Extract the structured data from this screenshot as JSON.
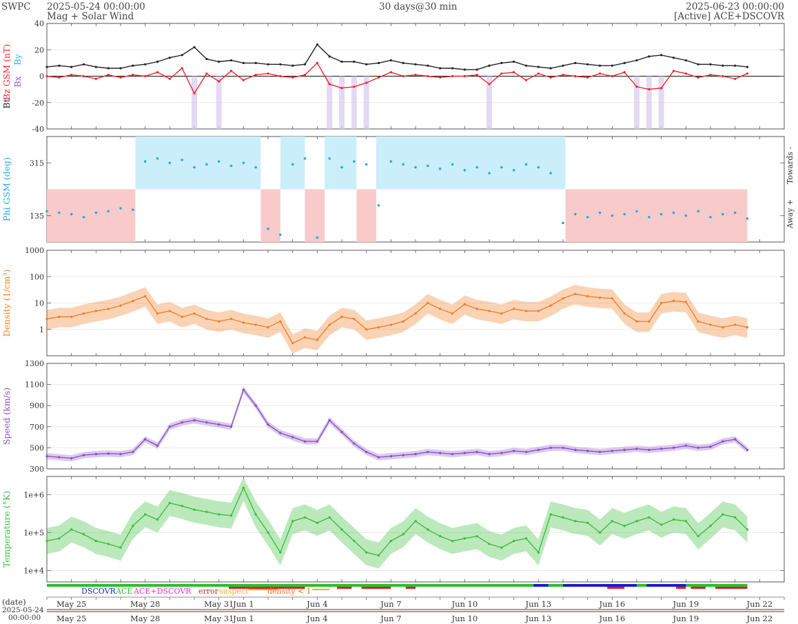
{
  "header": {
    "brand": "SWPC",
    "start": "2025-05-24 00:00:00",
    "subtitle": "Mag + Solar Wind",
    "resolution": "30 days@30 min",
    "end": "2025-06-23 00:00:00",
    "source": "[Active] ACE+DSCOVR"
  },
  "footer": {
    "date_label": "(date)",
    "date_value": "2025-05-24",
    "time_value": "00:00:00"
  },
  "colors": {
    "bt": "#222222",
    "bz": "#e8262b",
    "bx": "#8c55d0",
    "by": "#25b4e6",
    "phi": "#22a9e6",
    "towards_fill": "#cbeefb",
    "away_fill": "#f9caca",
    "density": "#f0802a",
    "speed": "#8c4fc8",
    "temperature": "#3cbf3c",
    "dscovr": "#1c1cd0",
    "ace": "#2bbf2b",
    "ace_dscovr": "#e22fe0",
    "error": "#e02020",
    "suspect": "#e8b020",
    "density_lt_1": "#f07020"
  },
  "chart_data": [
    {
      "type": "line",
      "panel": "magnetic",
      "ylabel_parts": [
        "Bt",
        "Bz GSM (nT)",
        "Bx",
        "By"
      ],
      "ylim": [
        -40,
        40
      ],
      "yticks": [
        "40",
        "20",
        "0",
        "-20",
        "-40"
      ],
      "x_days": [
        0,
        0.5,
        1,
        1.5,
        2,
        2.5,
        3,
        3.5,
        4,
        4.5,
        5,
        5.5,
        6,
        6.5,
        7,
        7.5,
        8,
        8.5,
        9,
        9.5,
        10,
        10.5,
        11,
        11.5,
        12,
        12.5,
        13,
        13.5,
        14,
        14.5,
        15,
        15.5,
        16,
        16.5,
        17,
        17.5,
        18,
        18.5,
        19,
        19.5,
        20,
        20.5,
        21,
        21.5,
        22,
        22.5,
        23,
        23.5,
        24,
        24.5,
        25,
        25.5,
        26,
        26.5,
        27,
        27.5,
        28,
        28.5
      ],
      "series": [
        {
          "name": "Bt",
          "values": [
            7,
            8,
            7,
            9,
            7,
            6,
            6,
            8,
            9,
            11,
            14,
            16,
            22,
            13,
            11,
            12,
            10,
            10,
            9,
            9,
            8,
            9,
            24,
            15,
            11,
            11,
            9,
            10,
            12,
            10,
            9,
            8,
            6,
            6,
            5,
            5,
            8,
            10,
            11,
            8,
            7,
            6,
            8,
            10,
            9,
            8,
            8,
            10,
            12,
            15,
            16,
            14,
            12,
            9,
            9,
            8,
            8,
            7
          ]
        },
        {
          "name": "Bz",
          "values": [
            0,
            -1,
            1,
            0,
            -2,
            1,
            -1,
            1,
            0,
            3,
            -2,
            6,
            -13,
            2,
            -4,
            4,
            -3,
            1,
            2,
            0,
            -1,
            1,
            10,
            -6,
            -9,
            -8,
            -5,
            -1,
            3,
            0,
            1,
            0,
            -1,
            0,
            0,
            1,
            -6,
            2,
            3,
            -3,
            2,
            -1,
            1,
            0,
            -1,
            2,
            0,
            3,
            -8,
            -10,
            -9,
            4,
            2,
            -1,
            1,
            0,
            -2,
            2
          ]
        }
      ]
    },
    {
      "type": "scatter",
      "panel": "phi",
      "ylabel": "Phi GSM (deg)",
      "right_labels": [
        "Towards -",
        "Away +"
      ],
      "yticks": [
        "315",
        "135"
      ],
      "ylim": [
        45,
        405
      ],
      "sectors": [
        {
          "from": 0,
          "to": 3.6,
          "sector": "away"
        },
        {
          "from": 3.6,
          "to": 8.7,
          "sector": "towards"
        },
        {
          "from": 8.7,
          "to": 9.5,
          "sector": "away"
        },
        {
          "from": 9.5,
          "to": 10.5,
          "sector": "towards"
        },
        {
          "from": 10.5,
          "to": 11.3,
          "sector": "away"
        },
        {
          "from": 11.3,
          "to": 11.7,
          "sector": "towards"
        },
        {
          "from": 11.7,
          "to": 12.6,
          "sector": "towards"
        },
        {
          "from": 12.6,
          "to": 13.4,
          "sector": "away"
        },
        {
          "from": 13.4,
          "to": 21.1,
          "sector": "towards"
        },
        {
          "from": 21.1,
          "to": 28.5,
          "sector": "away"
        }
      ],
      "x_days": [
        0,
        0.5,
        1,
        1.5,
        2,
        2.5,
        3,
        3.5,
        4,
        4.5,
        5,
        5.5,
        6,
        6.5,
        7,
        7.5,
        8,
        8.5,
        9,
        9.5,
        10,
        10.5,
        11,
        11.5,
        12,
        12.5,
        13,
        13.5,
        14,
        14.5,
        15,
        15.5,
        16,
        16.5,
        17,
        17.5,
        18,
        18.5,
        19,
        19.5,
        20,
        20.5,
        21,
        21.5,
        22,
        22.5,
        23,
        23.5,
        24,
        24.5,
        25,
        25.5,
        26,
        26.5,
        27,
        27.5,
        28,
        28.5
      ],
      "values": [
        150,
        145,
        140,
        130,
        145,
        150,
        160,
        155,
        320,
        330,
        315,
        325,
        300,
        310,
        320,
        305,
        315,
        300,
        90,
        70,
        310,
        330,
        60,
        330,
        300,
        320,
        310,
        170,
        320,
        310,
        300,
        305,
        295,
        310,
        290,
        300,
        280,
        300,
        290,
        310,
        300,
        280,
        110,
        140,
        130,
        145,
        135,
        140,
        150,
        130,
        140,
        145,
        135,
        150,
        130,
        140,
        145,
        125
      ]
    },
    {
      "type": "line",
      "panel": "density",
      "ylabel": "Density (1/cm³)",
      "yscale": "log",
      "yticks": [
        "1000",
        "100",
        "10",
        "1"
      ],
      "ylim": [
        0.1,
        1000
      ],
      "x_days": [
        0,
        0.5,
        1,
        1.5,
        2,
        2.5,
        3,
        3.5,
        4,
        4.5,
        5,
        5.5,
        6,
        6.5,
        7,
        7.5,
        8,
        8.5,
        9,
        9.5,
        10,
        10.5,
        11,
        11.5,
        12,
        12.5,
        13,
        13.5,
        14,
        14.5,
        15,
        15.5,
        16,
        16.5,
        17,
        17.5,
        18,
        18.5,
        19,
        19.5,
        20,
        20.5,
        21,
        21.5,
        22,
        22.5,
        23,
        23.5,
        24,
        24.5,
        25,
        25.5,
        26,
        26.5,
        27,
        27.5,
        28,
        28.5
      ],
      "values": [
        2.5,
        3,
        3,
        4,
        5,
        6,
        8,
        12,
        18,
        4,
        5,
        3,
        4,
        2.5,
        2,
        2.5,
        1.8,
        1.5,
        1.2,
        2,
        0.3,
        0.5,
        0.4,
        1.5,
        3,
        2.5,
        1,
        1.2,
        1.5,
        2,
        4,
        10,
        6,
        4,
        9,
        6,
        5,
        4,
        6,
        5,
        5,
        8,
        15,
        22,
        18,
        16,
        15,
        4,
        2,
        2,
        10,
        12,
        11,
        2,
        1.5,
        1.2,
        1.5,
        1.2
      ]
    },
    {
      "type": "line",
      "panel": "speed",
      "ylabel": "Speed (km/s)",
      "yticks": [
        "1300",
        "1100",
        "900",
        "700",
        "500",
        "300"
      ],
      "ylim": [
        300,
        1300
      ],
      "x_days": [
        0,
        0.5,
        1,
        1.5,
        2,
        2.5,
        3,
        3.5,
        4,
        4.5,
        5,
        5.5,
        6,
        6.5,
        7,
        7.5,
        8,
        8.5,
        9,
        9.5,
        10,
        10.5,
        11,
        11.5,
        12,
        12.5,
        13,
        13.5,
        14,
        14.5,
        15,
        15.5,
        16,
        16.5,
        17,
        17.5,
        18,
        18.5,
        19,
        19.5,
        20,
        20.5,
        21,
        21.5,
        22,
        22.5,
        23,
        23.5,
        24,
        24.5,
        25,
        25.5,
        26,
        26.5,
        27,
        27.5,
        28,
        28.5
      ],
      "values": [
        420,
        410,
        400,
        430,
        440,
        445,
        440,
        460,
        580,
        520,
        700,
        740,
        760,
        740,
        720,
        700,
        1050,
        900,
        720,
        640,
        600,
        560,
        560,
        760,
        650,
        540,
        460,
        410,
        420,
        430,
        440,
        460,
        450,
        440,
        450,
        460,
        440,
        450,
        470,
        460,
        480,
        500,
        500,
        480,
        470,
        460,
        470,
        480,
        490,
        480,
        490,
        500,
        520,
        500,
        510,
        560,
        580,
        480
      ]
    },
    {
      "type": "line",
      "panel": "temperature",
      "ylabel": "Temperature (°K)",
      "yscale": "log",
      "yticks": [
        "1e+6",
        "1e+5",
        "1e+4"
      ],
      "ylim": [
        5000,
        3000000
      ],
      "x_days": [
        0,
        0.5,
        1,
        1.5,
        2,
        2.5,
        3,
        3.5,
        4,
        4.5,
        5,
        5.5,
        6,
        6.5,
        7,
        7.5,
        8,
        8.5,
        9,
        9.5,
        10,
        10.5,
        11,
        11.5,
        12,
        12.5,
        13,
        13.5,
        14,
        14.5,
        15,
        15.5,
        16,
        16.5,
        17,
        17.5,
        18,
        18.5,
        19,
        19.5,
        20,
        20.5,
        21,
        21.5,
        22,
        22.5,
        23,
        23.5,
        24,
        24.5,
        25,
        25.5,
        26,
        26.5,
        27,
        27.5,
        28,
        28.5
      ],
      "values": [
        60000,
        70000,
        120000,
        90000,
        60000,
        50000,
        40000,
        150000,
        300000,
        220000,
        600000,
        500000,
        400000,
        350000,
        300000,
        280000,
        1500000,
        300000,
        100000,
        30000,
        200000,
        250000,
        180000,
        250000,
        120000,
        60000,
        30000,
        25000,
        60000,
        90000,
        200000,
        120000,
        80000,
        60000,
        70000,
        80000,
        50000,
        40000,
        60000,
        70000,
        30000,
        300000,
        250000,
        200000,
        180000,
        100000,
        200000,
        150000,
        200000,
        250000,
        160000,
        220000,
        200000,
        80000,
        150000,
        300000,
        250000,
        120000
      ]
    },
    {
      "type": "table",
      "panel": "source-flags",
      "legend": [
        "DSCOVR",
        "ACE",
        "ACE+DSCOVR",
        "error",
        "suspect",
        "density < 1"
      ],
      "x_ticks": [
        "May 25",
        "May 28",
        "May 31",
        "Jun 1",
        "Jun 4",
        "Jun 7",
        "Jun 10",
        "Jun 13",
        "Jun 16",
        "Jun 19",
        "Jun 22"
      ],
      "x_tick_days": [
        1,
        4,
        7,
        8,
        11,
        14,
        17,
        20,
        23,
        26,
        29
      ]
    }
  ]
}
